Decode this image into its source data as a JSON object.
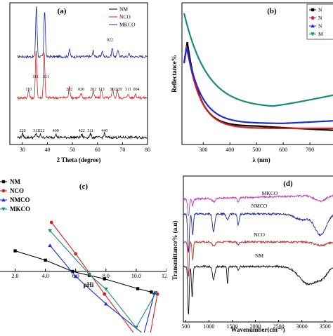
{
  "chart_data": [
    {
      "id": "a",
      "type": "line",
      "panel_label": "(a)",
      "xlabel": "2 Theta (degree)",
      "ylabel": "",
      "xlim": [
        25,
        80
      ],
      "xticks": [
        "30",
        "40",
        "50",
        "60",
        "70",
        "80"
      ],
      "legend": {
        "placement": "top-right",
        "entries": [
          "NM",
          "NCO",
          "MKCO"
        ]
      },
      "series": [
        {
          "name": "MKCO",
          "color": "#1f2a9e",
          "offset": 0.62,
          "peaks": [
            [
              35.6,
              0.36
            ],
            [
              38.9,
              0.33
            ],
            [
              48.8,
              0.05
            ],
            [
              58.3,
              0.04
            ],
            [
              61.9,
              0.04
            ],
            [
              65.9,
              0.06
            ],
            [
              68.2,
              0.05
            ],
            [
              72.6,
              0.02
            ]
          ]
        },
        {
          "name": "NCO",
          "color": "#d62020",
          "offset": 0.33,
          "peaks": [
            [
              32.5,
              0.05
            ],
            [
              35.5,
              0.34
            ],
            [
              38.7,
              0.33
            ],
            [
              48.8,
              0.08
            ],
            [
              53.5,
              0.03
            ],
            [
              58.3,
              0.05
            ],
            [
              61.6,
              0.06
            ],
            [
              66.1,
              0.07
            ],
            [
              67.9,
              0.06
            ],
            [
              72.2,
              0.03
            ],
            [
              75.2,
              0.03
            ]
          ]
        },
        {
          "name": "NM",
          "color": "#000000",
          "offset": 0.05,
          "peaks": [
            [
              30.1,
              0.025
            ],
            [
              35.5,
              0.03
            ],
            [
              37.3,
              0.02
            ],
            [
              43.3,
              0.025
            ],
            [
              53.7,
              0.02
            ],
            [
              57.2,
              0.025
            ],
            [
              62.8,
              0.03
            ]
          ]
        }
      ],
      "annotations": [
        {
          "text": "022",
          "x": 65.0,
          "series": "MKCO"
        },
        {
          "text": "111",
          "x": 35.3,
          "series": "MKCO-inner"
        },
        {
          "text": "111",
          "x": 39.5,
          "series": "MKCO-inner"
        },
        {
          "text": "110",
          "x": 32.5,
          "series": "NCO"
        },
        {
          "text": "202",
          "x": 48.8,
          "series": "NCO"
        },
        {
          "text": "020",
          "x": 53.5,
          "series": "NCO"
        },
        {
          "text": "202",
          "x": 58.3,
          "series": "NCO"
        },
        {
          "text": "113",
          "x": 61.6,
          "series": "NCO"
        },
        {
          "text": "311",
          "x": 66.1,
          "series": "NCO"
        },
        {
          "text": "220",
          "x": 68.5,
          "series": "NCO"
        },
        {
          "text": "311",
          "x": 72.2,
          "series": "NCO"
        },
        {
          "text": "004",
          "x": 75.5,
          "series": "NCO"
        },
        {
          "text": "220",
          "x": 30.1,
          "series": "NM"
        },
        {
          "text": "311",
          "x": 35.5,
          "series": "NM"
        },
        {
          "text": "222",
          "x": 37.6,
          "series": "NM"
        },
        {
          "text": "400",
          "x": 43.3,
          "series": "NM"
        },
        {
          "text": "422",
          "x": 53.7,
          "series": "NM"
        },
        {
          "text": "511",
          "x": 57.2,
          "series": "NM"
        },
        {
          "text": "440",
          "x": 62.8,
          "series": "NM"
        }
      ]
    },
    {
      "id": "b",
      "type": "line",
      "panel_label": "(b)",
      "xlabel": "λ (nm)",
      "ylabel": "Reflectance%",
      "xlim": [
        220,
        800
      ],
      "xticks": [
        "300",
        "400",
        "500",
        "600",
        "700"
      ],
      "legend": {
        "placement": "top-right",
        "entries": [
          "N",
          "N",
          "N",
          "M"
        ]
      },
      "series": [
        {
          "name": "NM",
          "color": "#000000",
          "marker": "square"
        },
        {
          "name": "NCO",
          "color": "#d62020",
          "marker": "circle"
        },
        {
          "name": "NMCO",
          "color": "#1f2ad0",
          "marker": "triangle"
        },
        {
          "name": "MKCO",
          "color": "#1a8a7a",
          "marker": "triangle-down"
        }
      ]
    },
    {
      "id": "c",
      "type": "line",
      "panel_label": "(c)",
      "xlabel": "pHi",
      "xlim": [
        1,
        12
      ],
      "xticks": [
        "2.0",
        "4.0",
        "6.0",
        "8.0",
        "10.0",
        "12.0"
      ],
      "legend": {
        "placement": "top-left",
        "entries": [
          "NM",
          "NCO",
          "NMCO",
          "MKCO"
        ]
      },
      "series": [
        {
          "name": "NM",
          "color": "#000000",
          "marker": "square",
          "x": [
            2,
            4,
            5.8,
            6.9,
            7.9,
            10.1,
            11.0
          ],
          "y": [
            0.42,
            0.23,
            0.0,
            -0.08,
            -0.15,
            -0.35,
            -0.42
          ]
        },
        {
          "name": "NCO",
          "color": "#d62020",
          "marker": "circle",
          "x": [
            4.4,
            6.0,
            7.9,
            10.0,
            10.9,
            11.4
          ],
          "y": [
            1.0,
            0.36,
            -0.46,
            -1.32,
            -1.32,
            -0.46
          ]
        },
        {
          "name": "NMCO",
          "color": "#1f2ad0",
          "marker": "triangle",
          "x": [
            4.3,
            6.0,
            8.0,
            10.5,
            11.2
          ],
          "y": [
            0.53,
            -0.1,
            -0.66,
            -1.28,
            -0.44
          ]
        },
        {
          "name": "MKCO",
          "color": "#1a8a7a",
          "marker": "triangle-down",
          "x": [
            4.3,
            6.9,
            8.0,
            10.0,
            11.3
          ],
          "y": [
            0.83,
            -0.06,
            -0.36,
            -1.14,
            -0.43
          ]
        }
      ]
    },
    {
      "id": "d",
      "type": "line",
      "panel_label": "(d)",
      "xlabel": "Wavenumber(cm⁻¹)",
      "ylabel": "Transmittance% (a.u)",
      "xlim": [
        450,
        3700
      ],
      "xticks": [
        "500",
        "1000",
        "1500",
        "2000",
        "2500",
        "3000",
        "3500"
      ],
      "labels": [
        "MKCO",
        "NMCO",
        "NCO",
        "NM"
      ],
      "series": [
        {
          "name": "MKCO",
          "color": "#c23bc2"
        },
        {
          "name": "NMCO",
          "color": "#1f2a8e"
        },
        {
          "name": "NCO",
          "color": "#b83232"
        },
        {
          "name": "NM",
          "color": "#111111"
        }
      ]
    }
  ]
}
